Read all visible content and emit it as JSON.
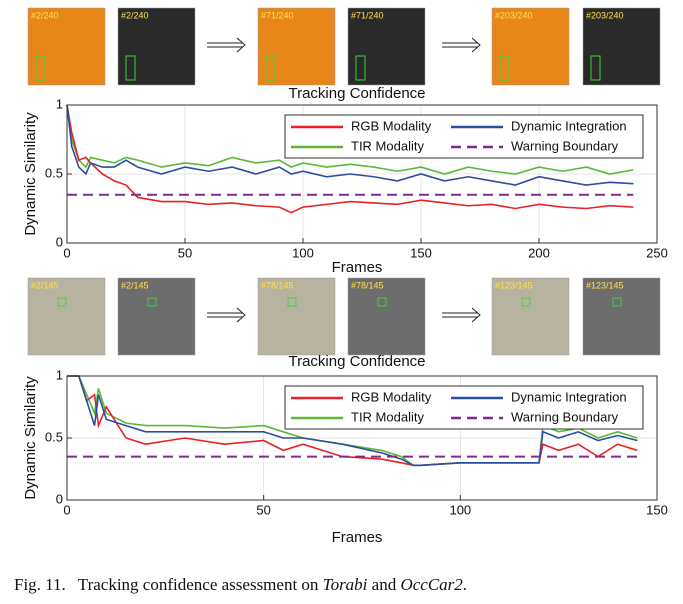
{
  "thumbnails": [
    {
      "label": "#2/240"
    },
    {
      "label": "#2/240"
    },
    {
      "label": "#71/240"
    },
    {
      "label": "#71/240"
    },
    {
      "label": "#203/240"
    },
    {
      "label": "#203/240"
    },
    {
      "label": "#2/145"
    },
    {
      "label": "#2/145"
    },
    {
      "label": "#78/145"
    },
    {
      "label": "#78/145"
    },
    {
      "label": "#123/145"
    },
    {
      "label": "#123/145"
    }
  ],
  "caption": [
    "Fig. 11.",
    "Tracking confidence assessment on ",
    "Torabi",
    " and ",
    "OccCar2",
    "."
  ],
  "chart_data": [
    {
      "type": "line",
      "title": "Tracking Confidence",
      "x_label": "Frames",
      "y_label": "Dynamic Similarity",
      "x": [
        0,
        2,
        5,
        8,
        10,
        15,
        20,
        25,
        30,
        40,
        50,
        60,
        70,
        80,
        90,
        95,
        100,
        110,
        120,
        130,
        140,
        150,
        160,
        170,
        180,
        190,
        200,
        210,
        220,
        230,
        240
      ],
      "series": [
        {
          "name": "RGB Modality",
          "color": "#e8202a",
          "values": [
            1,
            0.8,
            0.6,
            0.62,
            0.58,
            0.5,
            0.45,
            0.42,
            0.33,
            0.3,
            0.3,
            0.28,
            0.29,
            0.27,
            0.26,
            0.22,
            0.26,
            0.28,
            0.3,
            0.29,
            0.28,
            0.31,
            0.29,
            0.27,
            0.28,
            0.25,
            0.28,
            0.26,
            0.25,
            0.27,
            0.26
          ]
        },
        {
          "name": "Dynamic Integration",
          "color": "#2a4fa0",
          "values": [
            1,
            0.7,
            0.55,
            0.5,
            0.58,
            0.55,
            0.55,
            0.6,
            0.55,
            0.5,
            0.55,
            0.52,
            0.55,
            0.5,
            0.55,
            0.5,
            0.52,
            0.48,
            0.5,
            0.48,
            0.45,
            0.5,
            0.45,
            0.48,
            0.45,
            0.42,
            0.48,
            0.45,
            0.42,
            0.44,
            0.43
          ]
        },
        {
          "name": "TIR Modality",
          "color": "#5cb83a",
          "values": [
            1,
            0.75,
            0.6,
            0.55,
            0.62,
            0.6,
            0.58,
            0.62,
            0.6,
            0.55,
            0.58,
            0.56,
            0.62,
            0.58,
            0.6,
            0.55,
            0.58,
            0.55,
            0.57,
            0.55,
            0.52,
            0.55,
            0.5,
            0.55,
            0.52,
            0.5,
            0.55,
            0.52,
            0.55,
            0.5,
            0.53
          ]
        },
        {
          "name": "Warning Boundary",
          "color": "#7b2d8e",
          "dashed": true,
          "values": [
            0.35,
            0.35,
            0.35,
            0.35,
            0.35,
            0.35,
            0.35,
            0.35,
            0.35,
            0.35,
            0.35,
            0.35,
            0.35,
            0.35,
            0.35,
            0.35,
            0.35,
            0.35,
            0.35,
            0.35,
            0.35,
            0.35,
            0.35,
            0.35,
            0.35,
            0.35,
            0.35,
            0.35,
            0.35,
            0.35,
            0.35
          ]
        }
      ],
      "xlim": [
        0,
        250
      ],
      "xticks": [
        0,
        50,
        100,
        150,
        200,
        250
      ],
      "ylim": [
        0,
        1
      ],
      "yticks": [
        0,
        0.5,
        1
      ],
      "grid": true,
      "legend": "upper right"
    },
    {
      "type": "line",
      "title": "Tracking Confidence",
      "x_label": "Frames",
      "y_label": "Dynamic Similarity",
      "x": [
        0,
        3,
        5,
        7,
        8,
        10,
        15,
        20,
        30,
        40,
        50,
        55,
        60,
        70,
        80,
        85,
        88,
        90,
        100,
        110,
        120,
        121,
        125,
        130,
        135,
        140,
        145
      ],
      "series": [
        {
          "name": "RGB Modality",
          "color": "#e8202a",
          "values": [
            1,
            1,
            0.8,
            0.85,
            0.6,
            0.75,
            0.5,
            0.45,
            0.5,
            0.45,
            0.48,
            0.4,
            0.45,
            0.35,
            0.33,
            0.3,
            0.28,
            0.28,
            0.3,
            0.3,
            0.3,
            0.45,
            0.4,
            0.45,
            0.35,
            0.45,
            0.4
          ]
        },
        {
          "name": "Dynamic Integration",
          "color": "#2a4fa0",
          "values": [
            1,
            1,
            0.8,
            0.6,
            0.85,
            0.65,
            0.6,
            0.55,
            0.55,
            0.55,
            0.55,
            0.5,
            0.5,
            0.45,
            0.38,
            0.33,
            0.28,
            0.28,
            0.3,
            0.3,
            0.3,
            0.55,
            0.5,
            0.55,
            0.48,
            0.52,
            0.48
          ]
        },
        {
          "name": "TIR Modality",
          "color": "#5cb83a",
          "values": [
            1,
            1,
            0.85,
            0.7,
            0.9,
            0.7,
            0.62,
            0.6,
            0.6,
            0.58,
            0.6,
            0.55,
            0.5,
            0.45,
            0.4,
            0.35,
            0.28,
            0.28,
            0.3,
            0.3,
            0.3,
            0.6,
            0.55,
            0.58,
            0.5,
            0.55,
            0.5
          ]
        },
        {
          "name": "Warning Boundary",
          "color": "#7b2d8e",
          "dashed": true,
          "values": [
            0.35,
            0.35,
            0.35,
            0.35,
            0.35,
            0.35,
            0.35,
            0.35,
            0.35,
            0.35,
            0.35,
            0.35,
            0.35,
            0.35,
            0.35,
            0.35,
            0.35,
            0.35,
            0.35,
            0.35,
            0.35,
            0.35,
            0.35,
            0.35,
            0.35,
            0.35,
            0.35
          ]
        }
      ],
      "xlim": [
        0,
        150
      ],
      "xticks": [
        0,
        50,
        100,
        150
      ],
      "ylim": [
        0,
        1
      ],
      "yticks": [
        0,
        0.5,
        1
      ],
      "grid": true,
      "legend": "upper right"
    }
  ]
}
